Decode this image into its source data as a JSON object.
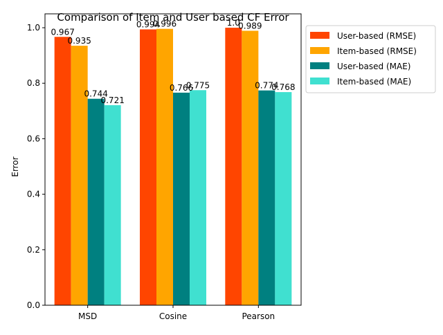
{
  "chart_data": {
    "type": "bar",
    "title": "Comparison of Item and User based CF Error",
    "xlabel": "",
    "ylabel": "Error",
    "categories": [
      "MSD",
      "Cosine",
      "Pearson"
    ],
    "series": [
      {
        "name": "User-based (RMSE)",
        "values": [
          0.967,
          0.994,
          1.0
        ],
        "labels": [
          "0.967",
          "0.994",
          "1.0"
        ],
        "color": "#ff4500"
      },
      {
        "name": "Item-based (RMSE)",
        "values": [
          0.935,
          0.996,
          0.989
        ],
        "labels": [
          "0.935",
          "0.996",
          "0.989"
        ],
        "color": "#ffa500"
      },
      {
        "name": "User-based (MAE)",
        "values": [
          0.744,
          0.766,
          0.774
        ],
        "labels": [
          "0.744",
          "0.766",
          "0.774"
        ],
        "color": "#008080"
      },
      {
        "name": "Item-based (MAE)",
        "values": [
          0.721,
          0.775,
          0.768
        ],
        "labels": [
          "0.721",
          "0.775",
          "0.768"
        ],
        "color": "#40e0d0"
      }
    ],
    "yticks": [
      "0.0",
      "0.2",
      "0.4",
      "0.6",
      "0.8",
      "1.0"
    ],
    "ylim": [
      0,
      1.05
    ],
    "grid": false,
    "legend": "outside-upper-right"
  }
}
